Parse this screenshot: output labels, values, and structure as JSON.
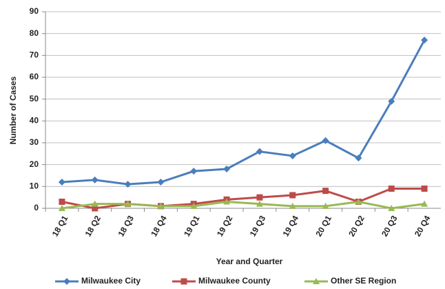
{
  "chart_data": {
    "type": "line",
    "x_label": "Year and Quarter",
    "y_label": "Number of Cases",
    "categories": [
      "18 Q1",
      "18 Q2",
      "18 Q3",
      "18 Q4",
      "19 Q1",
      "19 Q2",
      "19 Q3",
      "19 Q4",
      "20 Q1",
      "20 Q2",
      "20 Q3",
      "20 Q4"
    ],
    "series": [
      {
        "name": "Milwaukee City",
        "color": "#4a7ebb",
        "marker": "diamond",
        "values": [
          12,
          13,
          11,
          12,
          17,
          18,
          26,
          24,
          31,
          23,
          49,
          77
        ]
      },
      {
        "name": "Milwaukee County",
        "color": "#be4b48",
        "marker": "square",
        "values": [
          3,
          0,
          2,
          1,
          2,
          4,
          5,
          6,
          8,
          3,
          9,
          9
        ]
      },
      {
        "name": "Other SE Region",
        "color": "#98b954",
        "marker": "triangle",
        "values": [
          0,
          2,
          2,
          1,
          1,
          3,
          2,
          1,
          1,
          3,
          0,
          2
        ]
      }
    ],
    "ylim": [
      0,
      90
    ],
    "yticks": [
      0,
      10,
      20,
      30,
      40,
      50,
      60,
      70,
      80,
      90
    ],
    "grid": true,
    "legend": "bottom"
  }
}
